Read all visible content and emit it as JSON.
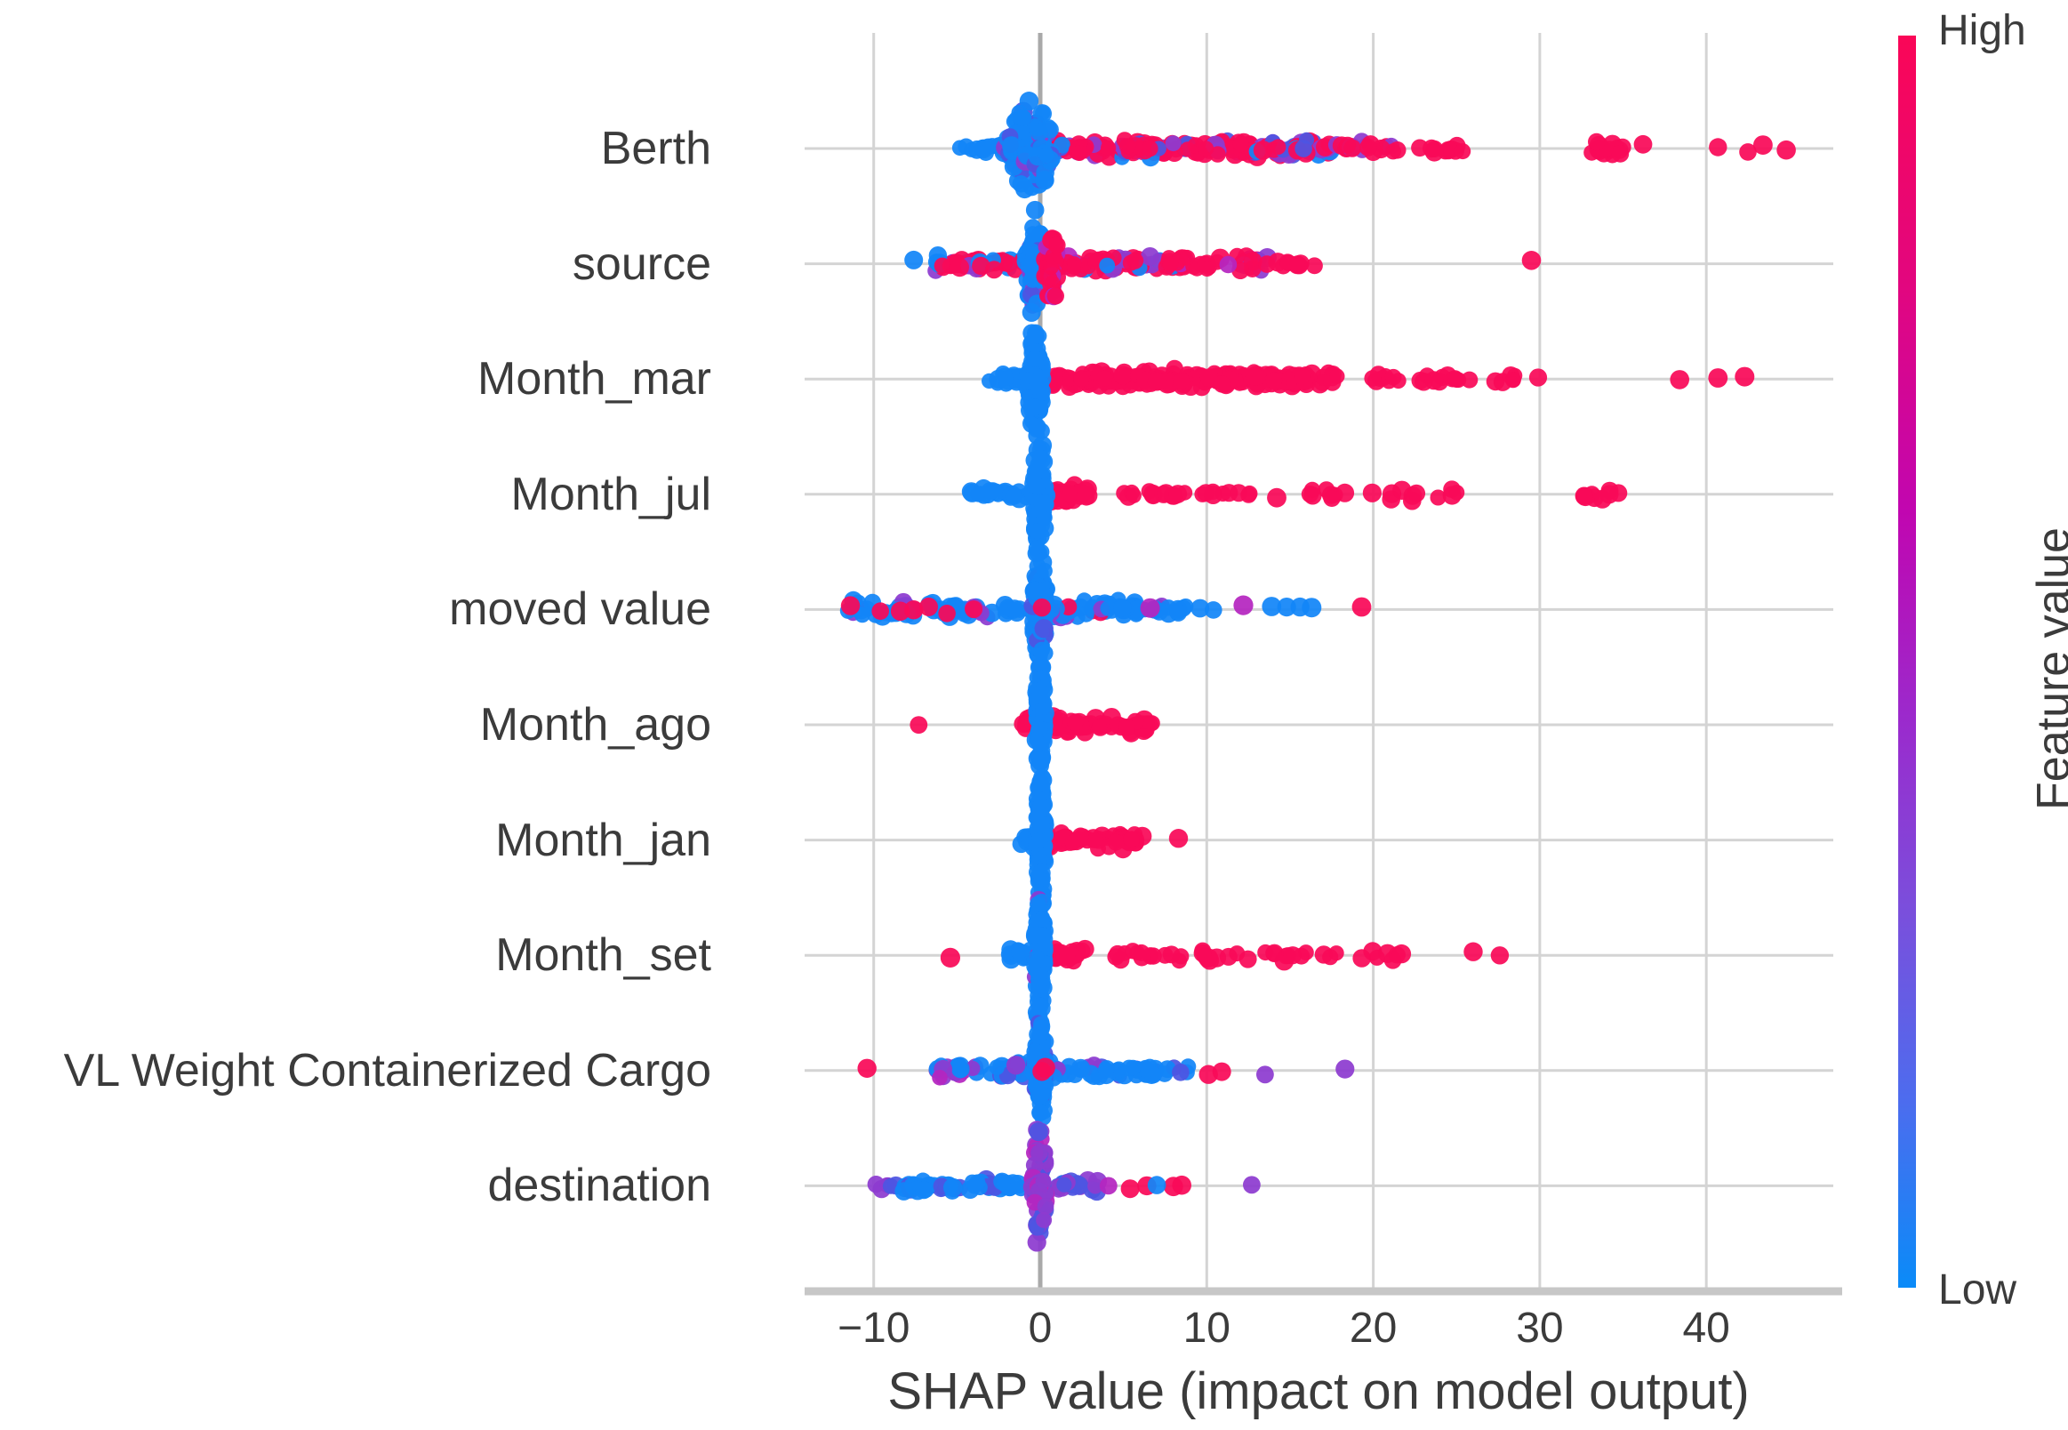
{
  "chart_data": {
    "type": "scatter",
    "variant": "shap-beeswarm-summary",
    "xlabel": "SHAP value (impact on model output)",
    "xticks": [
      {
        "value": -10,
        "label": "−10"
      },
      {
        "value": 0,
        "label": "0"
      },
      {
        "value": 10,
        "label": "10"
      },
      {
        "value": 20,
        "label": "20"
      },
      {
        "value": 30,
        "label": "30"
      },
      {
        "value": 40,
        "label": "40"
      }
    ],
    "xlim": [
      -14.1,
      47.6
    ],
    "grid": true,
    "zero_line": true,
    "colorbar": {
      "title": "Feature value",
      "high_label": "High",
      "low_label": "Low",
      "gradient_top_to_bottom": [
        "#fa0657",
        "#e2067f",
        "#c106b0",
        "#9a2bcd",
        "#7a4fdc",
        "#4d6cee",
        "#0a8bf8"
      ],
      "gradient_stops_pct": [
        0,
        20,
        38,
        55,
        70,
        85,
        100
      ]
    },
    "palette": {
      "blue": "#1285f8",
      "red": "#f90a58",
      "purple": "#8d3bd0",
      "slate": "#4d55e2",
      "magenta": "#b526c0"
    },
    "features": [
      {
        "name": "Berth",
        "clusters": [
          {
            "s": "band",
            "x0": -4.9,
            "x1": -2.0,
            "n": 14,
            "ym": 9,
            "c": {
              "blue": 1
            }
          },
          {
            "s": "band",
            "x0": 0.8,
            "x1": 17.5,
            "n": 175,
            "ym": 13,
            "c": {
              "red": 0.72,
              "purple": 0.15,
              "slate": 0.08,
              "blue": 0.05
            }
          },
          {
            "s": "band",
            "x0": 17.8,
            "x1": 21.6,
            "n": 20,
            "ym": 10,
            "c": {
              "red": 0.9,
              "purple": 0.1
            }
          },
          {
            "s": "band",
            "x0": 22.5,
            "x1": 26.5,
            "n": 11,
            "ym": 8,
            "c": {
              "red": 1
            }
          },
          {
            "s": "blob",
            "x0": 32.8,
            "x1": 35.0,
            "n": 14,
            "ym": 10,
            "c": {
              "red": 1
            }
          },
          {
            "s": "vbar",
            "x0": -2.2,
            "x1": 1.0,
            "n": 110,
            "ym": 60,
            "c": {
              "blue": 0.8,
              "slate": 0.13,
              "purple": 0.07
            }
          },
          {
            "s": "dots",
            "c": "red",
            "xs": [
              36.2,
              40.7,
              42.5,
              43.4,
              44.8
            ]
          }
        ]
      },
      {
        "name": "source",
        "clusters": [
          {
            "s": "dots",
            "c": "blue",
            "xs": [
              -7.6
            ]
          },
          {
            "s": "band",
            "x0": -6.3,
            "x1": -0.9,
            "n": 42,
            "ym": 12,
            "c": {
              "red": 0.55,
              "blue": 0.28,
              "purple": 0.17
            }
          },
          {
            "s": "band",
            "x0": 1.2,
            "x1": 13.8,
            "n": 105,
            "ym": 13,
            "c": {
              "red": 0.66,
              "purple": 0.18,
              "blue": 0.09,
              "magenta": 0.07
            }
          },
          {
            "s": "band",
            "x0": 14.2,
            "x1": 17.0,
            "n": 9,
            "ym": 8,
            "c": {
              "red": 1
            }
          },
          {
            "s": "vbar",
            "x0": -0.9,
            "x1": 0.3,
            "n": 75,
            "ym": 72,
            "c": {
              "blue": 0.78,
              "slate": 0.13,
              "purple": 0.09
            }
          },
          {
            "s": "vbar",
            "x0": 0.2,
            "x1": 1.2,
            "n": 45,
            "ym": 55,
            "c": {
              "red": 0.88,
              "magenta": 0.12
            }
          },
          {
            "s": "dots",
            "c": "red",
            "xs": [
              29.5
            ]
          }
        ]
      },
      {
        "name": "Month_mar",
        "clusters": [
          {
            "s": "band",
            "x0": -3.1,
            "x1": -0.6,
            "n": 18,
            "ym": 10,
            "c": {
              "blue": 1
            }
          },
          {
            "s": "band",
            "x0": 0.4,
            "x1": 18.0,
            "n": 185,
            "ym": 13,
            "c": {
              "red": 1
            }
          },
          {
            "s": "band",
            "x0": 19.8,
            "x1": 21.6,
            "n": 9,
            "ym": 8,
            "c": {
              "red": 1
            }
          },
          {
            "s": "band",
            "x0": 22.8,
            "x1": 28.6,
            "n": 18,
            "ym": 8,
            "c": {
              "red": 1
            }
          },
          {
            "s": "vbar",
            "x0": -0.8,
            "x1": 0.2,
            "n": 90,
            "ym": 78,
            "c": {
              "blue": 1
            }
          },
          {
            "s": "dots",
            "c": "red",
            "xs": [
              29.9,
              38.4,
              40.7,
              42.3
            ]
          }
        ]
      },
      {
        "name": "Month_jul",
        "clusters": [
          {
            "s": "band",
            "x0": -4.3,
            "x1": -0.5,
            "n": 22,
            "ym": 9,
            "c": {
              "blue": 1
            }
          },
          {
            "s": "blob",
            "x0": 0.5,
            "x1": 2.9,
            "n": 30,
            "ym": 13,
            "c": {
              "red": 1
            }
          },
          {
            "s": "band",
            "x0": 4.2,
            "x1": 9.0,
            "n": 13,
            "ym": 8,
            "c": {
              "red": 1
            }
          },
          {
            "s": "band",
            "x0": 9.6,
            "x1": 13.0,
            "n": 9,
            "ym": 8,
            "c": {
              "red": 1
            }
          },
          {
            "s": "dots",
            "c": "red",
            "xs": [
              14.2
            ]
          },
          {
            "s": "band",
            "x0": 16.2,
            "x1": 20.0,
            "n": 9,
            "ym": 8,
            "c": {
              "red": 1
            }
          },
          {
            "s": "band",
            "x0": 21.0,
            "x1": 25.4,
            "n": 10,
            "ym": 8,
            "c": {
              "red": 1
            }
          },
          {
            "s": "vbar",
            "x0": -0.5,
            "x1": 0.4,
            "n": 85,
            "ym": 88,
            "c": {
              "blue": 1
            }
          },
          {
            "s": "blob",
            "x0": 32.6,
            "x1": 34.9,
            "n": 9,
            "ym": 10,
            "c": {
              "red": 1
            }
          }
        ]
      },
      {
        "name": "moved value",
        "clusters": [
          {
            "s": "band",
            "x0": -11.8,
            "x1": -0.6,
            "n": 58,
            "ym": 12,
            "c": {
              "blue": 0.85,
              "purple": 0.15
            }
          },
          {
            "s": "dots",
            "c": "red",
            "xs": [
              -11.4,
              -9.6,
              -8.4,
              -7.6,
              -6.7,
              -5.6,
              -4.0
            ]
          },
          {
            "s": "band",
            "x0": 0.6,
            "x1": 8.9,
            "n": 60,
            "ym": 12,
            "c": {
              "blue": 0.84,
              "purple": 0.08,
              "red": 0.08
            }
          },
          {
            "s": "vbar",
            "x0": -0.5,
            "x1": 0.5,
            "n": 90,
            "ym": 90,
            "c": {
              "blue": 0.92,
              "slate": 0.08
            }
          },
          {
            "s": "dots",
            "c": "red",
            "xs": [
              0.1
            ]
          },
          {
            "s": "dots",
            "c": "magenta",
            "xs": [
              6.6,
              12.2
            ]
          },
          {
            "s": "dots",
            "c": "blue",
            "xs": [
              9.6,
              10.4,
              13.9,
              14.8,
              15.6,
              16.3
            ]
          },
          {
            "s": "dots",
            "c": "red",
            "xs": [
              19.3
            ]
          }
        ]
      },
      {
        "name": "Month_ago",
        "clusters": [
          {
            "s": "dots",
            "c": "red",
            "xs": [
              -7.3
            ]
          },
          {
            "s": "blob",
            "x0": -1.1,
            "x1": 0.1,
            "n": 10,
            "ym": 12,
            "c": {
              "red": 1
            }
          },
          {
            "s": "band",
            "x0": 0.4,
            "x1": 6.9,
            "n": 52,
            "ym": 13,
            "c": {
              "red": 1
            }
          },
          {
            "s": "vbar",
            "x0": -0.3,
            "x1": 0.3,
            "n": 85,
            "ym": 112,
            "c": {
              "blue": 1
            }
          }
        ]
      },
      {
        "name": "Month_jan",
        "clusters": [
          {
            "s": "band",
            "x0": -1.3,
            "x1": -0.2,
            "n": 10,
            "ym": 12,
            "c": {
              "blue": 1
            }
          },
          {
            "s": "band",
            "x0": 0.4,
            "x1": 6.2,
            "n": 48,
            "ym": 13,
            "c": {
              "red": 1
            }
          },
          {
            "s": "vbar",
            "x0": -0.3,
            "x1": 0.3,
            "n": 85,
            "ym": 108,
            "c": {
              "blue": 1
            }
          },
          {
            "s": "dots",
            "c": "red",
            "xs": [
              8.3
            ]
          }
        ]
      },
      {
        "name": "Month_set",
        "clusters": [
          {
            "s": "dots",
            "c": "red",
            "xs": [
              -5.4
            ]
          },
          {
            "s": "band",
            "x0": -2.1,
            "x1": -0.4,
            "n": 14,
            "ym": 11,
            "c": {
              "blue": 1
            }
          },
          {
            "s": "blob",
            "x0": 0.4,
            "x1": 2.7,
            "n": 26,
            "ym": 13,
            "c": {
              "red": 1
            }
          },
          {
            "s": "band",
            "x0": 4.4,
            "x1": 8.8,
            "n": 15,
            "ym": 9,
            "c": {
              "red": 1
            }
          },
          {
            "s": "band",
            "x0": 9.6,
            "x1": 12.5,
            "n": 10,
            "ym": 8,
            "c": {
              "red": 1
            }
          },
          {
            "s": "band",
            "x0": 13.5,
            "x1": 16.4,
            "n": 9,
            "ym": 8,
            "c": {
              "red": 1
            }
          },
          {
            "s": "band",
            "x0": 17.0,
            "x1": 17.8,
            "n": 3,
            "ym": 7,
            "c": {
              "red": 1
            }
          },
          {
            "s": "band",
            "x0": 18.7,
            "x1": 21.7,
            "n": 7,
            "ym": 8,
            "c": {
              "red": 1
            }
          },
          {
            "s": "vbar",
            "x0": -0.4,
            "x1": 0.3,
            "n": 88,
            "ym": 110,
            "c": {
              "blue": 0.97,
              "purple": 0.03
            }
          },
          {
            "s": "dots",
            "c": "red",
            "xs": [
              26.0,
              27.6
            ]
          }
        ]
      },
      {
        "name": "VL Weight Containerized Cargo",
        "clusters": [
          {
            "s": "dots",
            "c": "red",
            "xs": [
              -10.4
            ]
          },
          {
            "s": "band",
            "x0": -6.3,
            "x1": -3.5,
            "n": 22,
            "ym": 12,
            "c": {
              "purple": 0.5,
              "blue": 0.38,
              "magenta": 0.12
            }
          },
          {
            "s": "band",
            "x0": -3.5,
            "x1": 8.9,
            "n": 80,
            "ym": 12,
            "c": {
              "blue": 0.76,
              "slate": 0.13,
              "purple": 0.11
            }
          },
          {
            "s": "vbar",
            "x0": -0.4,
            "x1": 0.4,
            "n": 78,
            "ym": 86,
            "c": {
              "blue": 0.88,
              "slate": 0.12
            }
          },
          {
            "s": "dots",
            "c": "red",
            "xs": [
              0.1,
              0.3
            ]
          },
          {
            "s": "dots",
            "c": "red",
            "xs": [
              10.1,
              10.9
            ]
          },
          {
            "s": "dots",
            "c": "purple",
            "xs": [
              13.5,
              18.3
            ]
          }
        ]
      },
      {
        "name": "destination",
        "clusters": [
          {
            "s": "band",
            "x0": -9.9,
            "x1": -8.6,
            "n": 6,
            "ym": 10,
            "c": {
              "purple": 0.6,
              "slate": 0.4
            }
          },
          {
            "s": "band",
            "x0": -8.5,
            "x1": -0.9,
            "n": 52,
            "ym": 12,
            "c": {
              "blue": 0.85,
              "slate": 0.15
            }
          },
          {
            "s": "band",
            "x0": 0.6,
            "x1": 3.5,
            "n": 22,
            "ym": 11,
            "c": {
              "purple": 0.5,
              "slate": 0.3,
              "blue": 0.2
            }
          },
          {
            "s": "vbar",
            "x0": -0.5,
            "x1": 0.5,
            "n": 72,
            "ym": 86,
            "c": {
              "purple": 0.55,
              "slate": 0.3,
              "magenta": 0.15
            }
          },
          {
            "s": "dots",
            "c": "magenta",
            "xs": [
              4.1
            ]
          },
          {
            "s": "dots",
            "c": "red",
            "xs": [
              5.4,
              6.4,
              8.0,
              8.5
            ]
          },
          {
            "s": "dots",
            "c": "blue",
            "xs": [
              7.0
            ]
          },
          {
            "s": "dots",
            "c": "purple",
            "xs": [
              12.7
            ]
          }
        ]
      }
    ],
    "style": {
      "grid_color": "#d4d4d4",
      "zero_line_color": "#a9a9a9",
      "spine_color": "#c7c7c7",
      "text_color": "#3b3b3b",
      "background": "#ffffff"
    }
  }
}
